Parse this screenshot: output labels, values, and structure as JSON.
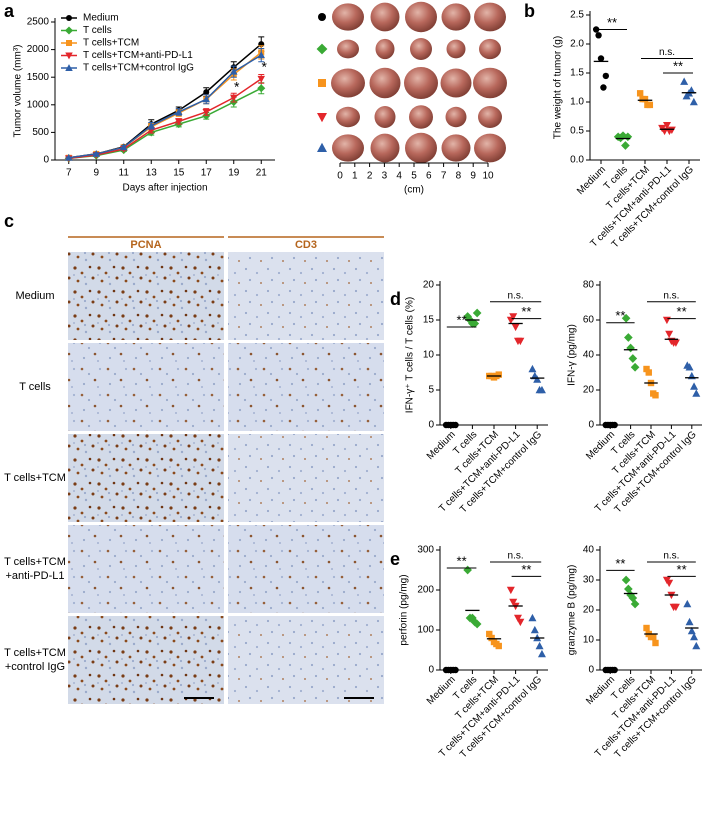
{
  "panel_labels": [
    "a",
    "b",
    "c",
    "d",
    "e"
  ],
  "chart_data": [
    {
      "type": "line",
      "xlabel": "Days after injection",
      "ylabel": "Tumor volume (mm³)",
      "x": [
        7,
        9,
        11,
        13,
        15,
        17,
        19,
        21
      ],
      "xlim": [
        6,
        22
      ],
      "xticks": [
        7,
        9,
        11,
        13,
        15,
        17,
        19,
        21
      ],
      "ylim": [
        0,
        2500
      ],
      "yticks": [
        0,
        500,
        1000,
        1500,
        2000,
        2500
      ],
      "legend": "upper left",
      "annotations": [
        "*",
        "*"
      ],
      "series": [
        {
          "name": "Medium",
          "color": "#000000",
          "marker": "circle",
          "values": [
            40,
            110,
            240,
            650,
            900,
            1230,
            1680,
            2100
          ],
          "errors": [
            15,
            20,
            30,
            80,
            60,
            80,
            100,
            130
          ]
        },
        {
          "name": "T cells",
          "color": "#3aaa35",
          "marker": "diamond",
          "values": [
            30,
            80,
            180,
            500,
            650,
            800,
            1050,
            1300
          ],
          "errors": [
            10,
            15,
            25,
            50,
            50,
            60,
            90,
            100
          ]
        },
        {
          "name": "T cells+TCM",
          "color": "#f7941d",
          "marker": "square",
          "values": [
            40,
            110,
            230,
            600,
            850,
            1100,
            1550,
            1950
          ],
          "errors": [
            15,
            20,
            30,
            60,
            60,
            80,
            100,
            120
          ]
        },
        {
          "name": "T cells+TCM+anti-PD-L1",
          "color": "#e3262b",
          "marker": "triangle-down",
          "values": [
            30,
            90,
            200,
            540,
            700,
            870,
            1130,
            1470
          ],
          "errors": [
            10,
            15,
            25,
            50,
            50,
            60,
            80,
            80
          ]
        },
        {
          "name": "T cells+TCM+control IgG",
          "color": "#2e5fa8",
          "marker": "triangle-up",
          "values": [
            40,
            110,
            230,
            620,
            870,
            1100,
            1600,
            1900
          ],
          "errors": [
            15,
            20,
            30,
            60,
            60,
            80,
            100,
            120
          ]
        }
      ]
    },
    {
      "type": "dot",
      "ylabel": "The weight of tumor (g)",
      "categories": [
        "Medium",
        "T cells",
        "T cells+TCM",
        "T cells+TCM+anti-PD-L1",
        "T cells+TCM+control IgG"
      ],
      "colors": [
        "#000000",
        "#3aaa35",
        "#f7941d",
        "#e3262b",
        "#2e5fa8"
      ],
      "markers": [
        "circle",
        "diamond",
        "square",
        "triangle-down",
        "triangle-up"
      ],
      "values": [
        [
          2.25,
          2.15,
          1.75,
          1.25,
          1.45
        ],
        [
          0.4,
          0.38,
          0.42,
          0.25,
          0.4
        ],
        [
          1.15,
          1.05,
          1.05,
          0.95,
          0.95
        ],
        [
          0.55,
          0.5,
          0.6,
          0.5,
          0.52
        ],
        [
          1.35,
          1.1,
          1.15,
          1.2,
          1.0
        ]
      ],
      "means": [
        1.7,
        0.37,
        1.03,
        0.53,
        1.16
      ],
      "ylim": [
        0,
        2.5
      ],
      "yticks": [
        {
          "value": 0,
          "label": "0.0"
        },
        0.5,
        {
          "value": 1,
          "label": "1.0"
        },
        1.5,
        {
          "value": 2,
          "label": "2.0"
        },
        2.5
      ],
      "annotations": [
        "**",
        "n.s.",
        "**"
      ]
    },
    {
      "type": "dot",
      "ylabel": "IFN-γ⁺ T cells / T cells (%)",
      "categories": [
        "Medium",
        "T cells",
        "T cells+TCM",
        "T cells+TCM+anti-PD-L1",
        "T cells+TCM+control IgG"
      ],
      "colors": [
        "#000000",
        "#3aaa35",
        "#f7941d",
        "#e3262b",
        "#2e5fa8"
      ],
      "markers": [
        "circle",
        "diamond",
        "square",
        "triangle-down",
        "triangle-up"
      ],
      "values": [
        [
          0,
          0,
          0,
          0,
          0
        ],
        [
          15.5,
          15,
          14.5,
          14.5,
          16
        ],
        [
          7,
          7,
          6.8,
          7,
          7.2
        ],
        [
          15,
          15.5,
          14,
          12,
          12
        ],
        [
          8,
          7,
          6.5,
          5,
          5
        ]
      ],
      "means": [
        0,
        15,
        7,
        14.5,
        6.7
      ],
      "ylim": [
        0,
        20
      ],
      "yticks": [
        0,
        5,
        10,
        15,
        20
      ],
      "annotations": [
        "**",
        "n.s.",
        "**"
      ]
    },
    {
      "type": "dot",
      "ylabel": "IFN-γ (pg/mg)",
      "categories": [
        "Medium",
        "T cells",
        "T cells+TCM",
        "T cells+TCM+anti-PD-L1",
        "T cells+TCM+control IgG"
      ],
      "colors": [
        "#000000",
        "#3aaa35",
        "#f7941d",
        "#e3262b",
        "#2e5fa8"
      ],
      "markers": [
        "circle",
        "diamond",
        "square",
        "triangle-down",
        "triangle-up"
      ],
      "values": [
        [
          0,
          0,
          0,
          0,
          0
        ],
        [
          61,
          50,
          44,
          38,
          33
        ],
        [
          32,
          30,
          24,
          18,
          17
        ],
        [
          60,
          52,
          48,
          47,
          47
        ],
        [
          34,
          33,
          28,
          22,
          18
        ]
      ],
      "means": [
        0,
        43,
        24,
        49,
        27
      ],
      "ylim": [
        0,
        80
      ],
      "yticks": [
        0,
        20,
        40,
        60,
        80
      ],
      "annotations": [
        "**",
        "n.s.",
        "**"
      ]
    },
    {
      "type": "dot",
      "ylabel": "perforin (pg/mg)",
      "categories": [
        "Medium",
        "T cells",
        "T cells+TCM",
        "T cells+TCM+anti-PD-L1",
        "T cells+TCM+control IgG"
      ],
      "colors": [
        "#000000",
        "#3aaa35",
        "#f7941d",
        "#e3262b",
        "#2e5fa8"
      ],
      "markers": [
        "circle",
        "diamond",
        "square",
        "triangle-down",
        "triangle-up"
      ],
      "values": [
        [
          0,
          0,
          0,
          0,
          0
        ],
        [
          250,
          130,
          130,
          120,
          115
        ],
        [
          90,
          80,
          70,
          65,
          60
        ],
        [
          200,
          170,
          160,
          130,
          120
        ],
        [
          130,
          100,
          80,
          60,
          40
        ]
      ],
      "means": [
        0,
        149,
        78,
        160,
        80
      ],
      "ylim": [
        0,
        300
      ],
      "yticks": [
        0,
        100,
        200,
        300
      ],
      "annotations": [
        "**",
        "n.s.",
        "**"
      ]
    },
    {
      "type": "dot",
      "ylabel": "granzyme B (pg/mg)",
      "categories": [
        "Medium",
        "T cells",
        "T cells+TCM",
        "T cells+TCM+anti-PD-L1",
        "T cells+TCM+control IgG"
      ],
      "colors": [
        "#000000",
        "#3aaa35",
        "#f7941d",
        "#e3262b",
        "#2e5fa8"
      ],
      "markers": [
        "circle",
        "diamond",
        "square",
        "triangle-down",
        "triangle-up"
      ],
      "values": [
        [
          0,
          0,
          0,
          0,
          0
        ],
        [
          30,
          27,
          25,
          24,
          22
        ],
        [
          14,
          12,
          11,
          11,
          9
        ],
        [
          30,
          29,
          25,
          21,
          21
        ],
        [
          22,
          16,
          13,
          11,
          8
        ]
      ],
      "means": [
        0,
        25.5,
        12,
        25,
        14
      ],
      "ylim": [
        0,
        40
      ],
      "yticks": [
        0,
        10,
        20,
        30,
        40
      ],
      "annotations": [
        "**",
        "n.s.",
        "**"
      ]
    }
  ],
  "tumor_photo": {
    "ruler_ticks": [
      0,
      1,
      2,
      3,
      4,
      5,
      6,
      7,
      8,
      9,
      10
    ],
    "ruler_unit": "(cm)"
  },
  "ihc": {
    "columns": [
      "PCNA",
      "CD3"
    ],
    "rows": [
      [
        "Medium"
      ],
      [
        "T cells"
      ],
      [
        "T cells+TCM"
      ],
      [
        "T cells+TCM",
        "+anti-PD-L1"
      ],
      [
        "T cells+TCM",
        "+control IgG"
      ]
    ]
  }
}
